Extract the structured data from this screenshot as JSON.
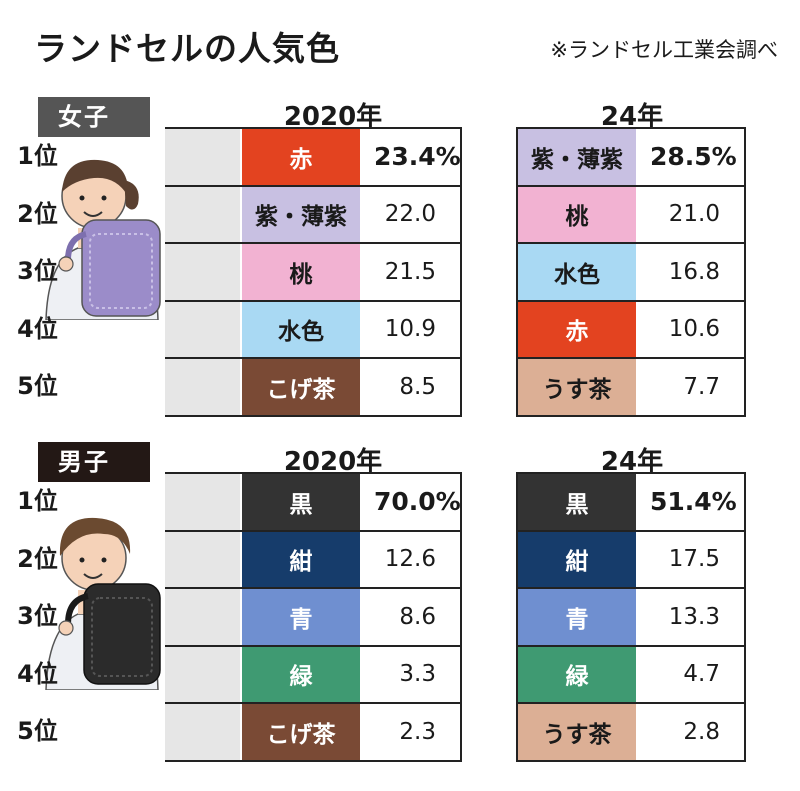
{
  "title": "ランドセルの人気色",
  "source": "※ランドセル工業会調べ",
  "chart_data": {
    "type": "table",
    "ranks": [
      "1位",
      "2位",
      "3位",
      "4位",
      "5位"
    ],
    "groups": [
      {
        "label": "女子",
        "years": [
          {
            "year": "2020年",
            "rows": [
              {
                "color": "赤",
                "value": "23.4%",
                "fill": "#e34320",
                "text": "#ffffff"
              },
              {
                "color": "紫・薄紫",
                "value": "22.0",
                "fill": "#c8c0e2",
                "text": "#1a1a1a"
              },
              {
                "color": "桃",
                "value": "21.5",
                "fill": "#f2b2d2",
                "text": "#1a1a1a"
              },
              {
                "color": "水色",
                "value": "10.9",
                "fill": "#a9d9f3",
                "text": "#1a1a1a"
              },
              {
                "color": "こげ茶",
                "value": "8.5",
                "fill": "#7a4a35",
                "text": "#ffffff"
              }
            ]
          },
          {
            "year": "24年",
            "rows": [
              {
                "color": "紫・薄紫",
                "value": "28.5%",
                "fill": "#c8c0e2",
                "text": "#1a1a1a"
              },
              {
                "color": "桃",
                "value": "21.0",
                "fill": "#f2b2d2",
                "text": "#1a1a1a"
              },
              {
                "color": "水色",
                "value": "16.8",
                "fill": "#a9d9f3",
                "text": "#1a1a1a"
              },
              {
                "color": "赤",
                "value": "10.6",
                "fill": "#e34320",
                "text": "#ffffff"
              },
              {
                "color": "うす茶",
                "value": "7.7",
                "fill": "#dcaf95",
                "text": "#1a1a1a"
              }
            ]
          }
        ]
      },
      {
        "label": "男子",
        "years": [
          {
            "year": "2020年",
            "rows": [
              {
                "color": "黒",
                "value": "70.0%",
                "fill": "#333333",
                "text": "#ffffff"
              },
              {
                "color": "紺",
                "value": "12.6",
                "fill": "#163c6b",
                "text": "#ffffff"
              },
              {
                "color": "青",
                "value": "8.6",
                "fill": "#6f8fd0",
                "text": "#ffffff"
              },
              {
                "color": "緑",
                "value": "3.3",
                "fill": "#3f9a72",
                "text": "#ffffff"
              },
              {
                "color": "こげ茶",
                "value": "2.3",
                "fill": "#7a4a35",
                "text": "#ffffff"
              }
            ]
          },
          {
            "year": "24年",
            "rows": [
              {
                "color": "黒",
                "value": "51.4%",
                "fill": "#333333",
                "text": "#ffffff"
              },
              {
                "color": "紺",
                "value": "17.5",
                "fill": "#163c6b",
                "text": "#ffffff"
              },
              {
                "color": "青",
                "value": "13.3",
                "fill": "#6f8fd0",
                "text": "#ffffff"
              },
              {
                "color": "緑",
                "value": "4.7",
                "fill": "#3f9a72",
                "text": "#ffffff"
              },
              {
                "color": "うす茶",
                "value": "2.8",
                "fill": "#dcaf95",
                "text": "#1a1a1a"
              }
            ]
          }
        ]
      }
    ],
    "group_colors": [
      "#555555",
      "#231815"
    ]
  }
}
